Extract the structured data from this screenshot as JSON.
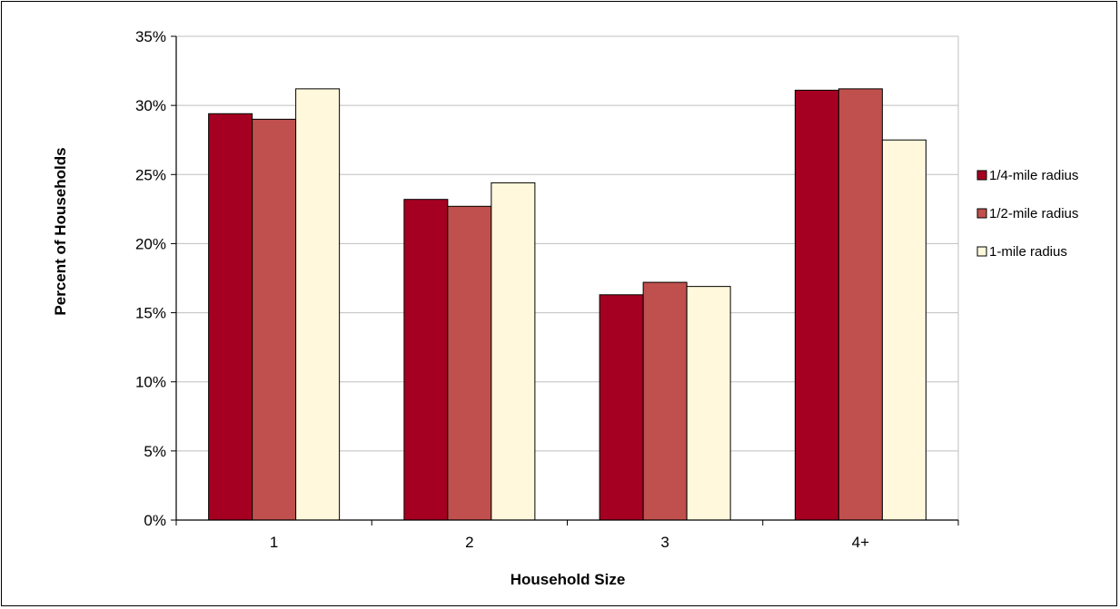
{
  "chart_data": {
    "type": "bar",
    "title": "",
    "xlabel": "Household Size",
    "ylabel": "Percent of Households",
    "categories": [
      "1",
      "2",
      "3",
      "4+"
    ],
    "series": [
      {
        "name": "1/4-mile radius",
        "color": "#A50021",
        "values": [
          29.4,
          23.2,
          16.3,
          31.1
        ]
      },
      {
        "name": "1/2-mile radius",
        "color": "#C0504D",
        "values": [
          29.0,
          22.7,
          17.2,
          31.2
        ]
      },
      {
        "name": "1-mile radius",
        "color": "#FFF8DC",
        "values": [
          31.2,
          24.4,
          16.9,
          27.5
        ]
      }
    ],
    "ylim": [
      0,
      35
    ],
    "yticks": [
      0,
      5,
      10,
      15,
      20,
      25,
      30,
      35
    ],
    "ytick_labels": [
      "0%",
      "5%",
      "10%",
      "15%",
      "20%",
      "25%",
      "30%",
      "35%"
    ],
    "grid": true,
    "legend_position": "right"
  }
}
